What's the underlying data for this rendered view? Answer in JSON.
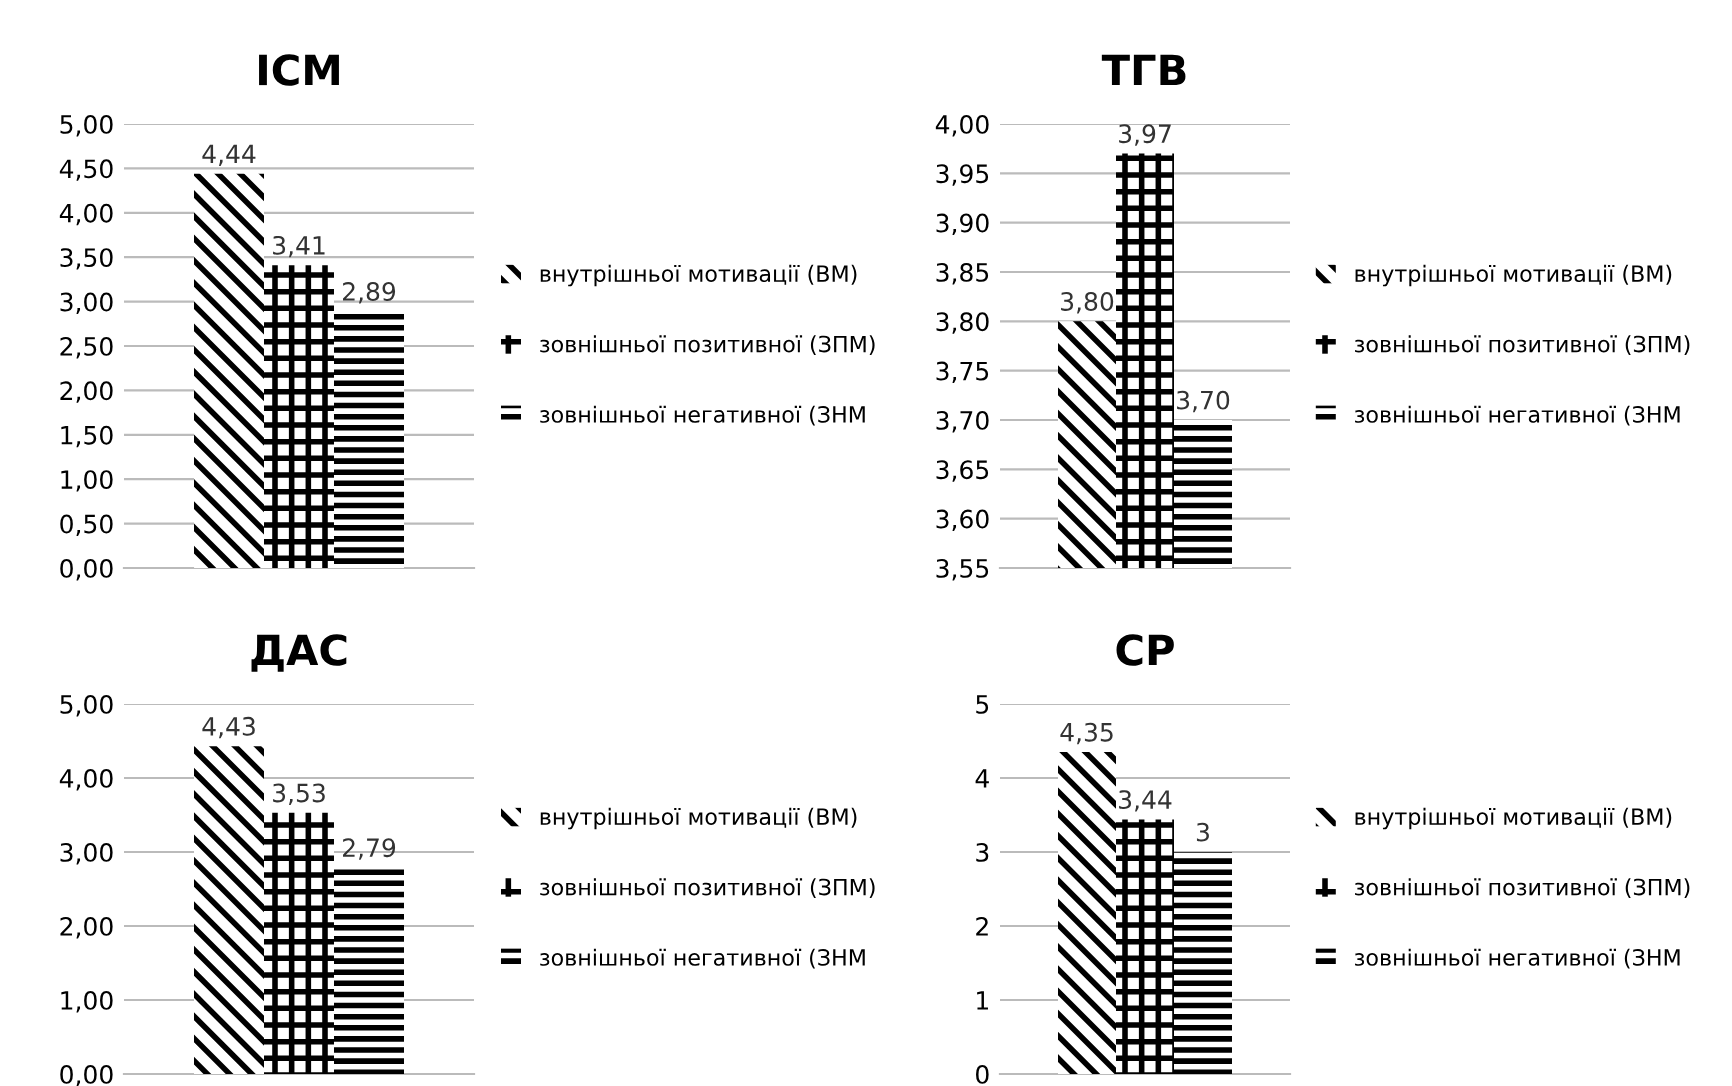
{
  "chart_data": [
    {
      "type": "bar",
      "title": "ІСМ",
      "categories": [
        null
      ],
      "ylim": [
        0,
        5
      ],
      "yticks": [
        {
          "value": 0,
          "label": "0,00"
        },
        {
          "value": 0.5,
          "label": "0,50"
        },
        {
          "value": 1,
          "label": "1,00"
        },
        {
          "value": 1.5,
          "label": "1,50"
        },
        {
          "value": 2,
          "label": "2,00"
        },
        {
          "value": 2.5,
          "label": "2,50"
        },
        {
          "value": 3,
          "label": "3,00"
        },
        {
          "value": 3.5,
          "label": "3,50"
        },
        {
          "value": 4,
          "label": "4,00"
        },
        {
          "value": 4.5,
          "label": "4,50"
        },
        {
          "value": 5,
          "label": "5,00"
        }
      ],
      "grid": "y",
      "legend": "right",
      "series": [
        {
          "name": "внутрішньої мотивації (ВМ)",
          "color": "#000000",
          "values": [
            4.44
          ],
          "value_labels": [
            "4,44"
          ]
        },
        {
          "name": "зовнішньої позитивної (ЗПМ)",
          "color": "#000000",
          "values": [
            3.41
          ],
          "value_labels": [
            "3,41"
          ]
        },
        {
          "name": "зовнішньої негативної (ЗНМ",
          "color": "#000000",
          "values": [
            2.89
          ],
          "value_labels": [
            "2,89"
          ]
        }
      ]
    },
    {
      "type": "bar",
      "title": "ТГВ",
      "categories": [
        null
      ],
      "ylim": [
        3.55,
        4
      ],
      "yticks": [
        {
          "value": 3.55,
          "label": "3,55"
        },
        {
          "value": 3.6,
          "label": "3,60"
        },
        {
          "value": 3.65,
          "label": "3,65"
        },
        {
          "value": 3.7,
          "label": "3,70"
        },
        {
          "value": 3.75,
          "label": "3,75"
        },
        {
          "value": 3.8,
          "label": "3,80"
        },
        {
          "value": 3.85,
          "label": "3,85"
        },
        {
          "value": 3.9,
          "label": "3,90"
        },
        {
          "value": 3.95,
          "label": "3,95"
        },
        {
          "value": 4,
          "label": "4,00"
        }
      ],
      "grid": "y",
      "legend": "right",
      "series": [
        {
          "name": "внутрішньої мотивації (ВМ)",
          "color": "#000000",
          "values": [
            3.8
          ],
          "value_labels": [
            "3,80"
          ]
        },
        {
          "name": "зовнішньої позитивної (ЗПМ)",
          "color": "#000000",
          "values": [
            3.97
          ],
          "value_labels": [
            "3,97"
          ]
        },
        {
          "name": "зовнішньої негативної (ЗНМ",
          "color": "#000000",
          "values": [
            3.7
          ],
          "value_labels": [
            "3,70"
          ]
        }
      ]
    },
    {
      "type": "bar",
      "title": "ДАС",
      "categories": [
        null
      ],
      "ylim": [
        0,
        5
      ],
      "yticks": [
        {
          "value": 0,
          "label": "0,00"
        },
        {
          "value": 1,
          "label": "1,00"
        },
        {
          "value": 2,
          "label": "2,00"
        },
        {
          "value": 3,
          "label": "3,00"
        },
        {
          "value": 4,
          "label": "4,00"
        },
        {
          "value": 5,
          "label": "5,00"
        }
      ],
      "grid": "y",
      "legend": "right",
      "series": [
        {
          "name": "внутрішньої мотивації (ВМ)",
          "color": "#000000",
          "values": [
            4.43
          ],
          "value_labels": [
            "4,43"
          ]
        },
        {
          "name": "зовнішньої позитивної (ЗПМ)",
          "color": "#000000",
          "values": [
            3.53
          ],
          "value_labels": [
            "3,53"
          ]
        },
        {
          "name": "зовнішньої негативної (ЗНМ",
          "color": "#000000",
          "values": [
            2.79
          ],
          "value_labels": [
            "2,79"
          ]
        }
      ]
    },
    {
      "type": "bar",
      "title": "СР",
      "categories": [
        null
      ],
      "ylim": [
        0,
        5
      ],
      "yticks": [
        0,
        1,
        2,
        3,
        4,
        5
      ],
      "grid": "y",
      "legend": "right",
      "series": [
        {
          "name": "внутрішньої мотивації (ВМ)",
          "color": "#000000",
          "values": [
            4.35
          ],
          "value_labels": [
            "4,35"
          ]
        },
        {
          "name": "зовнішньої позитивної (ЗПМ)",
          "color": "#000000",
          "values": [
            3.44
          ],
          "value_labels": [
            "3,44"
          ]
        },
        {
          "name": "зовнішньої негативної (ЗНМ",
          "color": "#000000",
          "values": [
            3
          ],
          "value_labels": [
            "3"
          ]
        }
      ]
    }
  ]
}
